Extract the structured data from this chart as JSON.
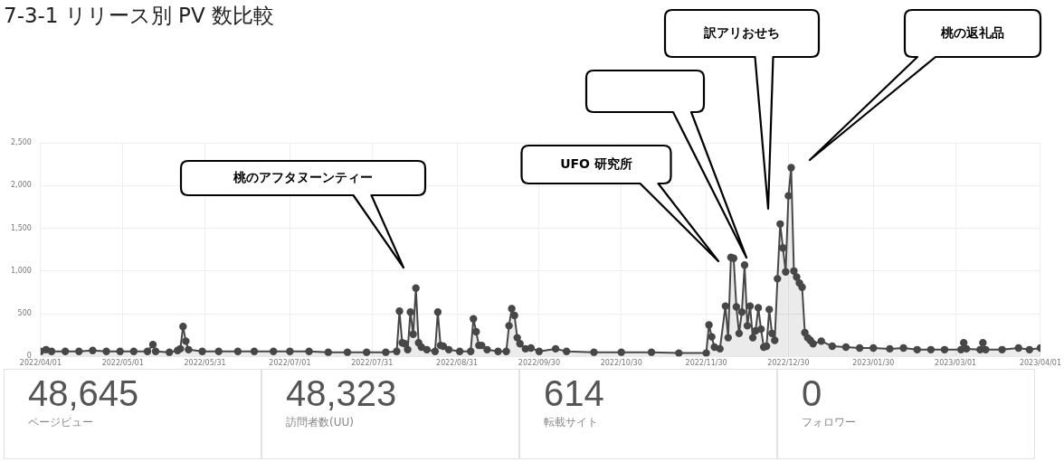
{
  "chart_data": [
    {
      "type": "area",
      "title": "7-3-1 リリース別 PV 数比較",
      "series": [
        {
          "color": "#474747",
          "x": [
            "2022-04-01",
            "2022-04-03",
            "2022-04-05",
            "2022-04-10",
            "2022-04-15",
            "2022-04-20",
            "2022-04-25",
            "2022-04-30",
            "2022-05-05",
            "2022-05-10",
            "2022-05-12",
            "2022-05-13",
            "2022-05-18",
            "2022-05-21",
            "2022-05-22",
            "2022-05-23",
            "2022-05-24",
            "2022-05-25",
            "2022-05-30",
            "2022-06-05",
            "2022-06-12",
            "2022-06-18",
            "2022-06-25",
            "2022-07-01",
            "2022-07-08",
            "2022-07-15",
            "2022-07-22",
            "2022-07-29",
            "2022-08-05",
            "2022-08-09",
            "2022-08-10",
            "2022-08-11",
            "2022-08-12",
            "2022-08-13",
            "2022-08-14",
            "2022-08-15",
            "2022-08-16",
            "2022-08-17",
            "2022-08-18",
            "2022-08-20",
            "2022-08-23",
            "2022-08-24",
            "2022-08-25",
            "2022-08-26",
            "2022-08-28",
            "2022-09-01",
            "2022-09-05",
            "2022-09-06",
            "2022-09-07",
            "2022-09-08",
            "2022-09-09",
            "2022-09-11",
            "2022-09-15",
            "2022-09-18",
            "2022-09-19",
            "2022-09-20",
            "2022-09-21",
            "2022-09-22",
            "2022-09-23",
            "2022-09-25",
            "2022-09-27",
            "2022-09-30",
            "2022-10-06",
            "2022-10-10",
            "2022-10-20",
            "2022-10-30",
            "2022-11-10",
            "2022-11-20",
            "2022-11-30",
            "2022-12-01",
            "2022-12-02",
            "2022-12-03",
            "2022-12-05",
            "2022-12-07",
            "2022-12-08",
            "2022-12-09",
            "2022-12-10",
            "2022-12-11",
            "2022-12-12",
            "2022-12-13",
            "2022-12-14",
            "2022-12-15",
            "2022-12-16",
            "2022-12-17",
            "2022-12-18",
            "2022-12-19",
            "2022-12-20",
            "2022-12-21",
            "2022-12-22",
            "2022-12-23",
            "2022-12-24",
            "2022-12-25",
            "2022-12-26",
            "2022-12-27",
            "2022-12-28",
            "2022-12-29",
            "2022-12-30",
            "2022-12-31",
            "2023-01-01",
            "2023-01-02",
            "2023-01-03",
            "2023-01-04",
            "2023-01-05",
            "2023-01-06",
            "2023-01-07",
            "2023-01-08",
            "2023-01-11",
            "2023-01-15",
            "2023-01-20",
            "2023-01-25",
            "2023-01-30",
            "2023-02-05",
            "2023-02-10",
            "2023-02-15",
            "2023-02-20",
            "2023-02-25",
            "2023-03-03",
            "2023-03-04",
            "2023-03-05",
            "2023-03-10",
            "2023-03-11",
            "2023-03-12",
            "2023-03-18",
            "2023-03-24",
            "2023-03-28",
            "2023-04-01"
          ],
          "values": [
            60,
            80,
            60,
            60,
            60,
            70,
            60,
            60,
            60,
            60,
            140,
            60,
            50,
            70,
            90,
            350,
            180,
            80,
            60,
            60,
            60,
            60,
            60,
            60,
            60,
            50,
            50,
            50,
            50,
            60,
            530,
            160,
            150,
            80,
            520,
            260,
            800,
            160,
            110,
            80,
            60,
            520,
            130,
            120,
            80,
            60,
            60,
            440,
            290,
            130,
            130,
            80,
            60,
            60,
            360,
            560,
            480,
            220,
            150,
            90,
            100,
            60,
            90,
            60,
            50,
            50,
            50,
            40,
            40,
            370,
            230,
            110,
            90,
            590,
            220,
            1160,
            1150,
            580,
            270,
            520,
            1070,
            360,
            590,
            220,
            300,
            570,
            320,
            110,
            120,
            550,
            270,
            190,
            910,
            1550,
            1270,
            990,
            1880,
            2210,
            1000,
            930,
            860,
            810,
            280,
            220,
            190,
            150,
            180,
            120,
            110,
            100,
            100,
            90,
            100,
            80,
            80,
            80,
            80,
            160,
            90,
            80,
            160,
            80,
            80,
            100,
            80,
            100
          ]
        }
      ],
      "xlim": [
        "2022-04-01",
        "2023-04-01"
      ],
      "xticks": [
        {
          "value": "2022-04-01",
          "label": "2022/04/01"
        },
        {
          "value": "2022-05-01",
          "label": "2022/05/01"
        },
        {
          "value": "2022-05-31",
          "label": "2022/05/31"
        },
        {
          "value": "2022-07-01",
          "label": "2022/07/01"
        },
        {
          "value": "2022-07-31",
          "label": "2022/07/31"
        },
        {
          "value": "2022-08-31",
          "label": "2022/08/31"
        },
        {
          "value": "2022-09-30",
          "label": "2022/09/30"
        },
        {
          "value": "2022-10-30",
          "label": "2022/10/30"
        },
        {
          "value": "2022-11-30",
          "label": "2022/11/30"
        },
        {
          "value": "2022-12-30",
          "label": "2022/12/30"
        },
        {
          "value": "2023-01-30",
          "label": "2023/01/30"
        },
        {
          "value": "2023-03-01",
          "label": "2023/03/01"
        },
        {
          "value": "2023-04-01",
          "label": "2023/04/01"
        }
      ],
      "ylim": [
        0,
        2500
      ],
      "yticks": [
        0,
        500,
        {
          "value": 1000,
          "label": "1,000"
        },
        {
          "value": 1500,
          "label": "1,500"
        },
        {
          "value": 2000,
          "label": "2,000"
        },
        {
          "value": 2500,
          "label": "2,500"
        }
      ],
      "grid": true,
      "legend": false,
      "marker": "circle",
      "annotations": [
        "桃のアフタヌーンティー",
        "UFO 研究所",
        "訳アリおせち",
        "桃の返礼品"
      ]
    },
    {
      "type": "other",
      "annotations": [
        "48,645",
        "ページビュー",
        "48,323",
        "訪問者数(UU)",
        "614",
        "転載サイト",
        "0",
        "フォロワー"
      ]
    }
  ]
}
